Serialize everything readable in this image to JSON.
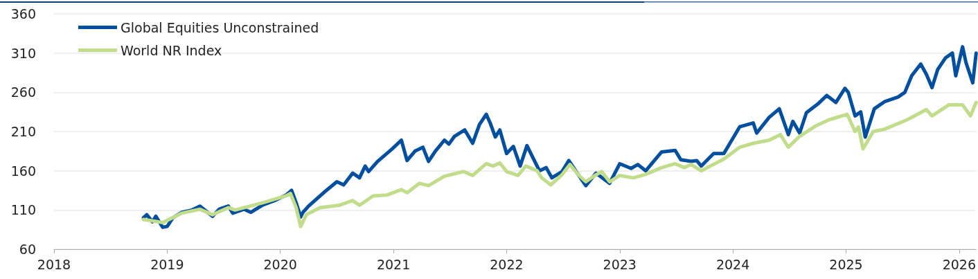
{
  "chart_data": {
    "type": "line",
    "legend": "top left",
    "grid": "y",
    "marker": "none",
    "line_style": "solid",
    "xlim": [
      2018,
      2026.15
    ],
    "xticks": [
      2018,
      2019,
      2020,
      2021,
      2022,
      2023,
      2024,
      2025,
      2026
    ],
    "ylim": [
      60,
      360
    ],
    "yticks": [
      60,
      110,
      160,
      210,
      260,
      310,
      360
    ],
    "series": [
      {
        "name": "Global Equities Unconstrained",
        "color": "#004f9f",
        "x": [
          2018.79,
          2018.82,
          2018.87,
          2018.9,
          2018.96,
          2019.0,
          2019.05,
          2019.13,
          2019.22,
          2019.29,
          2019.4,
          2019.46,
          2019.54,
          2019.58,
          2019.68,
          2019.74,
          2019.84,
          2019.95,
          2020.05,
          2020.1,
          2020.14,
          2020.18,
          2020.2,
          2020.25,
          2020.39,
          2020.5,
          2020.56,
          2020.64,
          2020.7,
          2020.75,
          2020.78,
          2020.86,
          2020.99,
          2021.07,
          2021.12,
          2021.19,
          2021.26,
          2021.31,
          2021.37,
          2021.45,
          2021.49,
          2021.54,
          2021.63,
          2021.7,
          2021.76,
          2021.82,
          2021.86,
          2021.9,
          2021.94,
          2022.0,
          2022.06,
          2022.12,
          2022.18,
          2022.29,
          2022.35,
          2022.4,
          2022.49,
          2022.55,
          2022.61,
          2022.7,
          2022.79,
          2022.91,
          2023.0,
          2023.1,
          2023.16,
          2023.23,
          2023.37,
          2023.49,
          2023.54,
          2023.63,
          2023.68,
          2023.72,
          2023.83,
          2023.92,
          2024.06,
          2024.18,
          2024.21,
          2024.32,
          2024.41,
          2024.49,
          2024.53,
          2024.59,
          2024.65,
          2024.75,
          2024.83,
          2024.91,
          2024.99,
          2025.02,
          2025.08,
          2025.13,
          2025.17,
          2025.25,
          2025.34,
          2025.46,
          2025.52,
          2025.58,
          2025.66,
          2025.71,
          2025.76,
          2025.81,
          2025.88,
          2025.94,
          2025.97,
          2026.03,
          2026.06,
          2026.12,
          2026.15
        ],
        "values": [
          100,
          104,
          95,
          102,
          88,
          89,
          100,
          107,
          110,
          115,
          102,
          111,
          115,
          106,
          111,
          107,
          116,
          122,
          129,
          135,
          119,
          101,
          107,
          115,
          133,
          146,
          142,
          157,
          151,
          166,
          159,
          172,
          188,
          199,
          173,
          185,
          190,
          172,
          185,
          199,
          194,
          204,
          212,
          195,
          219,
          232,
          219,
          203,
          212,
          182,
          191,
          166,
          192,
          160,
          164,
          151,
          159,
          173,
          160,
          141,
          157,
          144,
          169,
          163,
          168,
          160,
          184,
          186,
          174,
          172,
          173,
          166,
          182,
          182,
          216,
          221,
          208,
          228,
          239,
          206,
          223,
          208,
          234,
          245,
          256,
          247,
          265,
          260,
          230,
          235,
          203,
          239,
          248,
          254,
          260,
          281,
          296,
          283,
          266,
          289,
          304,
          310,
          281,
          318,
          298,
          272,
          310
        ]
      },
      {
        "name": "World NR Index",
        "color": "#c1dc8a",
        "x": [
          2018.79,
          2018.96,
          2019.13,
          2019.29,
          2019.4,
          2019.54,
          2019.6,
          2019.84,
          2020.05,
          2020.09,
          2020.14,
          2020.18,
          2020.23,
          2020.35,
          2020.52,
          2020.64,
          2020.7,
          2020.76,
          2020.82,
          2020.94,
          2021.07,
          2021.12,
          2021.23,
          2021.31,
          2021.45,
          2021.62,
          2021.7,
          2021.82,
          2021.88,
          2021.94,
          2022.0,
          2022.1,
          2022.17,
          2022.27,
          2022.31,
          2022.39,
          2022.49,
          2022.56,
          2022.64,
          2022.7,
          2022.78,
          2022.84,
          2022.91,
          2023.0,
          2023.12,
          2023.22,
          2023.37,
          2023.49,
          2023.57,
          2023.63,
          2023.72,
          2023.92,
          2024.06,
          2024.18,
          2024.32,
          2024.42,
          2024.49,
          2024.59,
          2024.73,
          2024.85,
          2025.01,
          2025.08,
          2025.11,
          2025.15,
          2025.24,
          2025.34,
          2025.54,
          2025.71,
          2025.76,
          2025.91,
          2026.03,
          2026.1,
          2026.15
        ],
        "values": [
          98,
          94,
          106,
          111,
          104,
          113,
          110,
          119,
          128,
          131,
          113,
          89,
          104,
          113,
          116,
          122,
          116,
          122,
          128,
          129,
          136,
          132,
          144,
          141,
          153,
          159,
          154,
          169,
          166,
          170,
          159,
          154,
          166,
          160,
          151,
          142,
          155,
          168,
          154,
          146,
          154,
          159,
          146,
          154,
          151,
          155,
          164,
          169,
          164,
          168,
          160,
          175,
          190,
          195,
          199,
          206,
          190,
          204,
          217,
          225,
          232,
          210,
          216,
          188,
          210,
          213,
          225,
          238,
          230,
          244,
          244,
          230,
          247
        ]
      }
    ]
  }
}
